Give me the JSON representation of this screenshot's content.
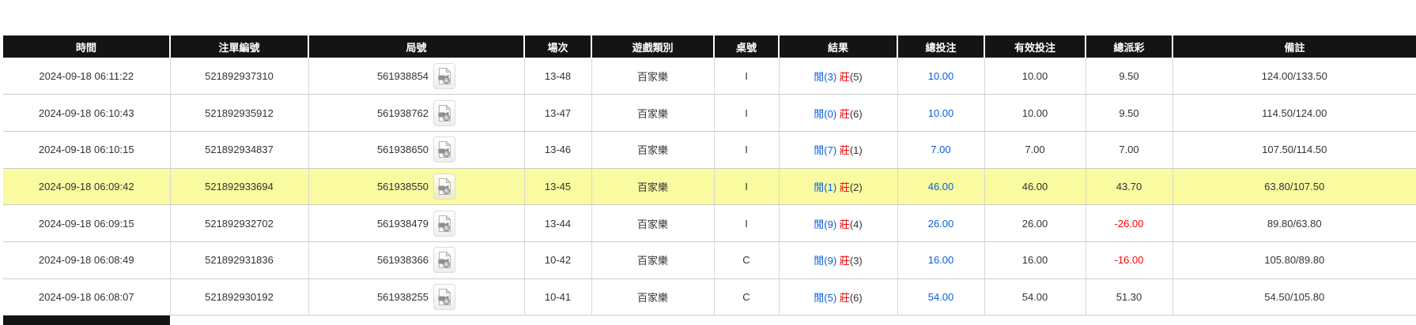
{
  "table": {
    "columns": [
      {
        "key": "time",
        "label": "時間"
      },
      {
        "key": "bet_id",
        "label": "注單編號"
      },
      {
        "key": "round",
        "label": "局號"
      },
      {
        "key": "session",
        "label": "場次"
      },
      {
        "key": "game_type",
        "label": "遊戲類別"
      },
      {
        "key": "table_code",
        "label": "桌號"
      },
      {
        "key": "result",
        "label": "結果"
      },
      {
        "key": "total_bet",
        "label": "總投注"
      },
      {
        "key": "valid_bet",
        "label": "有效投注"
      },
      {
        "key": "payout",
        "label": "總派彩"
      },
      {
        "key": "remark",
        "label": "備註"
      }
    ],
    "rows": [
      {
        "time": "2024-09-18 06:11:22",
        "bet_id": "521892937310",
        "round": "561938854",
        "session": "13-48",
        "game_type": "百家樂",
        "table_code": "I",
        "result": {
          "player": "閒(3)",
          "banker": "莊",
          "banker_points": "(5)"
        },
        "total_bet": "10.00",
        "valid_bet": "10.00",
        "payout": "9.50",
        "remark": "124.00/133.50",
        "highlight": false
      },
      {
        "time": "2024-09-18 06:10:43",
        "bet_id": "521892935912",
        "round": "561938762",
        "session": "13-47",
        "game_type": "百家樂",
        "table_code": "I",
        "result": {
          "player": "閒(0)",
          "banker": "莊",
          "banker_points": "(6)"
        },
        "total_bet": "10.00",
        "valid_bet": "10.00",
        "payout": "9.50",
        "remark": "114.50/124.00",
        "highlight": false
      },
      {
        "time": "2024-09-18 06:10:15",
        "bet_id": "521892934837",
        "round": "561938650",
        "session": "13-46",
        "game_type": "百家樂",
        "table_code": "I",
        "result": {
          "player": "閒(7)",
          "banker": "莊",
          "banker_points": "(1)"
        },
        "total_bet": "7.00",
        "valid_bet": "7.00",
        "payout": "7.00",
        "remark": "107.50/114.50",
        "highlight": false
      },
      {
        "time": "2024-09-18 06:09:42",
        "bet_id": "521892933694",
        "round": "561938550",
        "session": "13-45",
        "game_type": "百家樂",
        "table_code": "I",
        "result": {
          "player": "閒(1)",
          "banker": "莊",
          "banker_points": "(2)"
        },
        "total_bet": "46.00",
        "valid_bet": "46.00",
        "payout": "43.70",
        "remark": "63.80/107.50",
        "highlight": true
      },
      {
        "time": "2024-09-18 06:09:15",
        "bet_id": "521892932702",
        "round": "561938479",
        "session": "13-44",
        "game_type": "百家樂",
        "table_code": "I",
        "result": {
          "player": "閒(9)",
          "banker": "莊",
          "banker_points": "(4)"
        },
        "total_bet": "26.00",
        "valid_bet": "26.00",
        "payout": "-26.00",
        "remark": "89.80/63.80",
        "highlight": false
      },
      {
        "time": "2024-09-18 06:08:49",
        "bet_id": "521892931836",
        "round": "561938366",
        "session": "10-42",
        "game_type": "百家樂",
        "table_code": "C",
        "result": {
          "player": "閒(9)",
          "banker": "莊",
          "banker_points": "(3)"
        },
        "total_bet": "16.00",
        "valid_bet": "16.00",
        "payout": "-16.00",
        "remark": "105.80/89.80",
        "highlight": false
      },
      {
        "time": "2024-09-18 06:08:07",
        "bet_id": "521892930192",
        "round": "561938255",
        "session": "10-41",
        "game_type": "百家樂",
        "table_code": "C",
        "result": {
          "player": "閒(5)",
          "banker": "莊",
          "banker_points": "(6)"
        },
        "total_bet": "54.00",
        "valid_bet": "54.00",
        "payout": "51.30",
        "remark": "54.50/105.80",
        "highlight": false
      }
    ],
    "icon_name": "video-file-icon"
  },
  "colors": {
    "header_bg": "#141414",
    "header_text": "#ffffff",
    "row_highlight": "#fafaa0",
    "bet_amount_blue": "#0b5ed7",
    "player_blue": "#0b5ed7",
    "banker_red": "#e60000",
    "negative_red": "#ff0000"
  }
}
